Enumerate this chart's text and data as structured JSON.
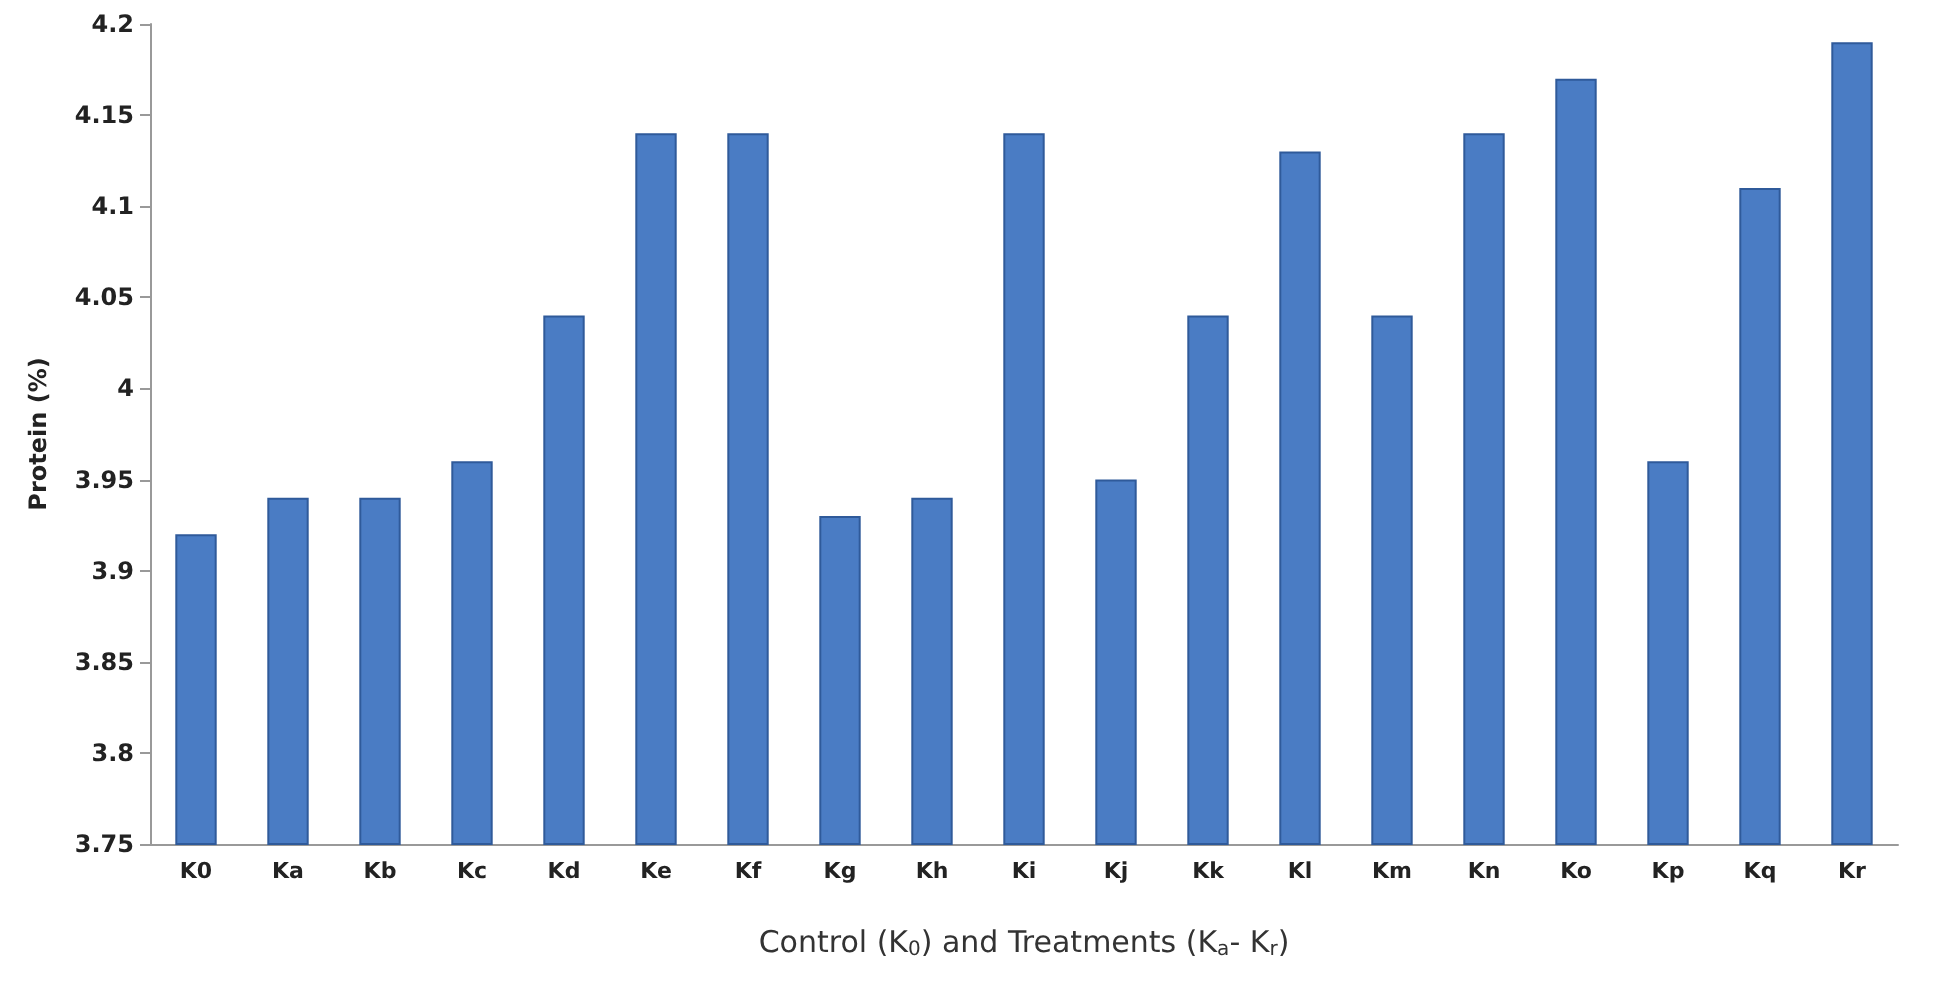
{
  "chart_data": {
    "type": "bar",
    "xlabel": "Control (K$_{0}$) and Treatments (K$_{a}$- K$_{r}$)",
    "ylabel": "Protein (%)",
    "categories": [
      "K0",
      "Ka",
      "Kb",
      "Kc",
      "Kd",
      "Ke",
      "Kf",
      "Kg",
      "Kh",
      "Ki",
      "Kj",
      "Kk",
      "Kl",
      "Km",
      "Kn",
      "Ko",
      "Kp",
      "Kq",
      "Kr"
    ],
    "values": [
      3.92,
      3.94,
      3.94,
      3.96,
      4.04,
      4.14,
      4.14,
      3.93,
      3.94,
      4.14,
      3.95,
      4.04,
      4.13,
      4.04,
      4.14,
      4.17,
      3.96,
      4.11,
      4.19
    ],
    "color": "#4a7cc4",
    "ylim": [
      3.75,
      4.2
    ],
    "yticks": [
      3.75,
      3.8,
      3.85,
      3.9,
      3.95,
      4,
      4.05,
      4.1,
      4.15,
      4.2
    ],
    "grid": false
  }
}
